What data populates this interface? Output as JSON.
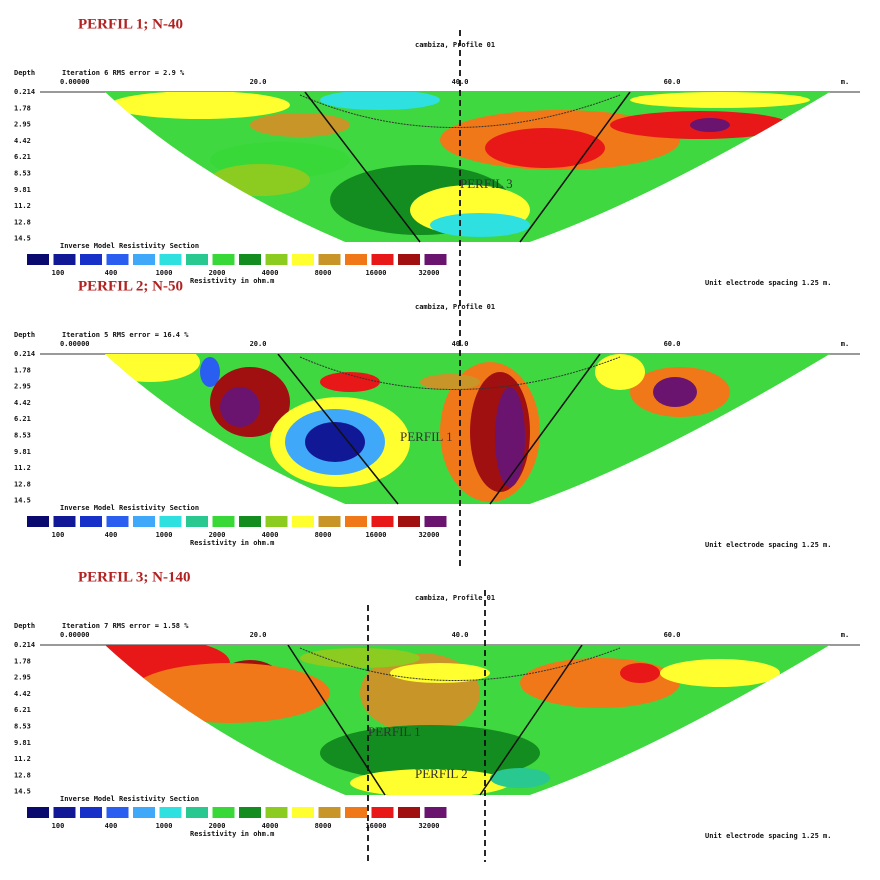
{
  "panels": [
    {
      "title": "PERFIL 1; N-40",
      "profile": "cambiza, Profile 01",
      "depth_label": "Depth",
      "iteration": "Iteration 6 RMS error = 2.9 %",
      "x_labels": [
        "0.00000",
        "20.0",
        "40.0",
        "60.0",
        "m."
      ],
      "depths": [
        "0.214",
        "1.78",
        "2.95",
        "4.42",
        "6.21",
        "8.53",
        "9.81",
        "11.2",
        "12.8",
        "14.5"
      ],
      "legend_title": "Inverse Model Resistivity Section",
      "legend_values": [
        "100",
        "400",
        "1000",
        "2000",
        "4000",
        "8000",
        "16000",
        "32000"
      ],
      "legend_unit": "Resistivity in ohm.m",
      "spacing": "Unit electrode spacing 1.25 m.",
      "annotations": [
        "PERFIL 3"
      ]
    },
    {
      "title": "PERFIL 2; N-50",
      "profile": "cambiza, Profile 01",
      "depth_label": "Depth",
      "iteration": "Iteration 5 RMS error = 16.4 %",
      "x_labels": [
        "0.00000",
        "20.0",
        "40.0",
        "60.0",
        "m."
      ],
      "depths": [
        "0.214",
        "1.78",
        "2.95",
        "4.42",
        "6.21",
        "8.53",
        "9.81",
        "11.2",
        "12.8",
        "14.5"
      ],
      "legend_title": "Inverse Model Resistivity Section",
      "legend_values": [
        "100",
        "400",
        "1000",
        "2000",
        "4000",
        "8000",
        "16000",
        "32000"
      ],
      "legend_unit": "Resistivity in ohm.m",
      "spacing": "Unit electrode spacing 1.25 m.",
      "annotations": [
        "PERFIL 1"
      ]
    },
    {
      "title": "PERFIL 3; N-140",
      "profile": "cambiza, Profile 01",
      "depth_label": "Depth",
      "iteration": "Iteration 7 RMS error = 1.58 %",
      "x_labels": [
        "0.00000",
        "20.0",
        "40.0",
        "60.0",
        "m."
      ],
      "depths": [
        "0.214",
        "1.78",
        "2.95",
        "4.42",
        "6.21",
        "8.53",
        "9.81",
        "11.2",
        "12.8",
        "14.5"
      ],
      "legend_title": "Inverse Model Resistivity Section",
      "legend_values": [
        "100",
        "400",
        "1000",
        "2000",
        "4000",
        "8000",
        "16000",
        "32000"
      ],
      "legend_unit": "Resistivity in ohm.m",
      "spacing": "Unit electrode spacing 1.25 m.",
      "annotations": [
        "PERFIL 1",
        "PERFIL 2"
      ]
    }
  ]
}
